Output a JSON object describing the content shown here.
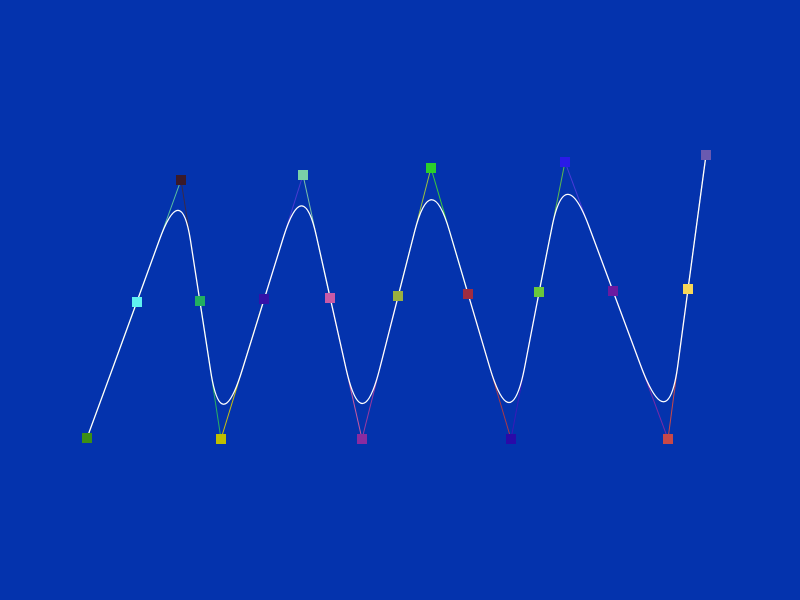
{
  "scene": {
    "background_color": "#0433ad",
    "curve_color": "#ffffff",
    "control_points": [
      {
        "color": "#3d8f14"
      },
      {
        "color": "#5ff0f0"
      },
      {
        "color": "#3a1a2a"
      },
      {
        "color": "#22b060"
      },
      {
        "color": "#bfbf00"
      },
      {
        "color": "#3412a8"
      },
      {
        "color": "#7ad0a8"
      },
      {
        "color": "#c95aa6"
      },
      {
        "color": "#8a2ba0"
      },
      {
        "color": "#9ab040"
      },
      {
        "color": "#2bd02b"
      },
      {
        "color": "#a02c40"
      },
      {
        "color": "#2a0aa8"
      },
      {
        "color": "#6ac83a"
      },
      {
        "color": "#2a1ae8"
      },
      {
        "color": "#6a1aa0"
      },
      {
        "color": "#c84848"
      },
      {
        "color": "#f8d858"
      },
      {
        "color": "#6a5ab0"
      }
    ],
    "control_segment_colors": [
      "#58b828",
      "#5ac0a0",
      "#3a2a4a",
      "#2ab060",
      "#c8c010",
      "#4a3ad0",
      "#7ac0a8",
      "#c85aa0",
      "#9a3aa0",
      "#9ac040",
      "#3ac83a",
      "#a83a48",
      "#3a1ab8",
      "#5ab850",
      "#4a3ad8",
      "#7a2aa8",
      "#c84848",
      "#e8c858"
    ]
  }
}
